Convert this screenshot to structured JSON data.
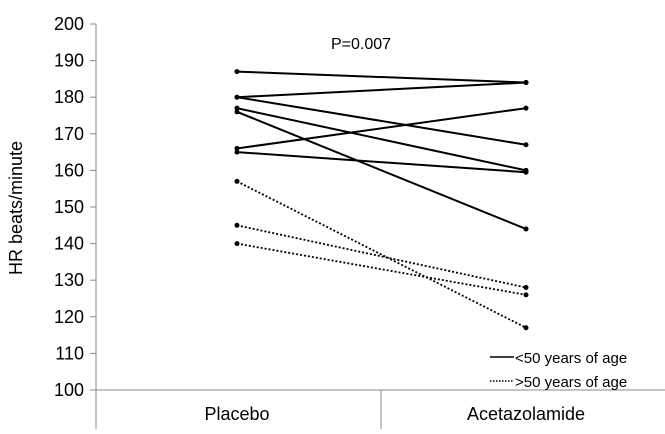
{
  "chart_data": {
    "type": "line",
    "title": "",
    "annotation": "P=0.007",
    "ylabel": "HR beats/minute",
    "xlabel": "",
    "categories": [
      "Placebo",
      "Acetazolamide"
    ],
    "ylim": [
      100,
      200
    ],
    "yticks": [
      100,
      110,
      120,
      130,
      140,
      150,
      160,
      170,
      180,
      190,
      200
    ],
    "grid": false,
    "legend_position": "bottom-right",
    "groups": [
      {
        "name": "<50 years of age",
        "style": "solid"
      },
      {
        "name": ">50 years of age",
        "style": "dotted"
      }
    ],
    "series": [
      {
        "group": 0,
        "values": [
          187,
          184
        ]
      },
      {
        "group": 0,
        "values": [
          180,
          184
        ]
      },
      {
        "group": 0,
        "values": [
          180,
          167
        ]
      },
      {
        "group": 0,
        "values": [
          177,
          160
        ]
      },
      {
        "group": 0,
        "values": [
          176,
          144
        ]
      },
      {
        "group": 0,
        "values": [
          166,
          177
        ]
      },
      {
        "group": 0,
        "values": [
          165,
          159.5
        ]
      },
      {
        "group": 1,
        "values": [
          157,
          117
        ]
      },
      {
        "group": 1,
        "values": [
          145,
          128
        ]
      },
      {
        "group": 1,
        "values": [
          140,
          126
        ]
      }
    ],
    "colors": {
      "line": "#000000",
      "marker": "#000000",
      "axis": "#888888"
    }
  }
}
